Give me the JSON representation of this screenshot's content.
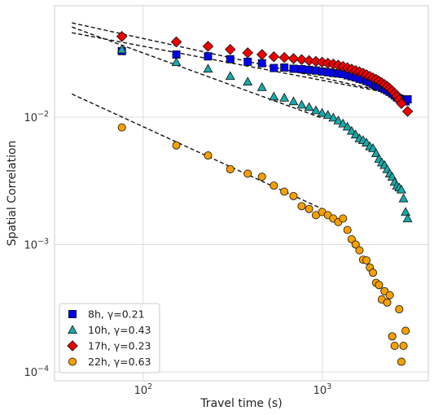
{
  "chart_data": {
    "type": "scatter",
    "xlabel": "Travel time (s)",
    "ylabel": "Spatial Correlation",
    "xscale": "log",
    "yscale": "log",
    "xlim": [
      32,
      3900
    ],
    "ylim": [
      8.5e-05,
      0.075
    ],
    "grid": true,
    "legend_position": "lower-left",
    "xticks": [
      {
        "value": 100,
        "mantissa": "10",
        "exp": "2"
      },
      {
        "value": 1000,
        "mantissa": "10",
        "exp": "3"
      }
    ],
    "yticks": [
      {
        "value": 0.0001,
        "mantissa": "10",
        "exp": "−4"
      },
      {
        "value": 0.001,
        "mantissa": "10",
        "exp": "−3"
      },
      {
        "value": 0.01,
        "mantissa": "10",
        "exp": "−2"
      }
    ],
    "fit_lines": [
      {
        "x": [
          40,
          3000
        ],
        "y": [
          0.055,
          0.0145
        ]
      },
      {
        "x": [
          40,
          1000
        ],
        "y": [
          0.051,
          0.0098
        ]
      },
      {
        "x": [
          40,
          3000
        ],
        "y": [
          0.046,
          0.0145
        ]
      },
      {
        "x": [
          40,
          1000
        ],
        "y": [
          0.0152,
          0.0019
        ]
      }
    ],
    "series": [
      {
        "name": "8h, γ=0.21",
        "marker": "square",
        "color": "#0000ee",
        "points": [
          [
            76,
            0.033
          ],
          [
            153,
            0.031
          ],
          [
            230,
            0.03
          ],
          [
            306,
            0.0285
          ],
          [
            383,
            0.0272
          ],
          [
            460,
            0.0265
          ],
          [
            536,
            0.0243
          ],
          [
            613,
            0.0245
          ],
          [
            690,
            0.024
          ],
          [
            766,
            0.0238
          ],
          [
            843,
            0.0235
          ],
          [
            920,
            0.0232
          ],
          [
            996,
            0.0228
          ],
          [
            1073,
            0.0225
          ],
          [
            1150,
            0.0222
          ],
          [
            1226,
            0.022
          ],
          [
            1303,
            0.0218
          ],
          [
            1380,
            0.0213
          ],
          [
            1456,
            0.0209
          ],
          [
            1533,
            0.0205
          ],
          [
            1610,
            0.02
          ],
          [
            1686,
            0.0197
          ],
          [
            1763,
            0.0192
          ],
          [
            1840,
            0.0187
          ],
          [
            1916,
            0.0182
          ],
          [
            1993,
            0.0178
          ],
          [
            2070,
            0.0174
          ],
          [
            2146,
            0.017
          ],
          [
            2223,
            0.0166
          ],
          [
            2300,
            0.0162
          ],
          [
            2376,
            0.0158
          ],
          [
            2453,
            0.0153
          ],
          [
            2530,
            0.0148
          ],
          [
            2606,
            0.0143
          ],
          [
            2683,
            0.014
          ],
          [
            2760,
            0.0138
          ],
          [
            2836,
            0.0135
          ],
          [
            2913,
            0.0133
          ],
          [
            2990,
            0.0138
          ]
        ]
      },
      {
        "name": "10h, γ=0.43",
        "marker": "triangle",
        "color": "#1aa8a8",
        "points": [
          [
            76,
            0.034
          ],
          [
            153,
            0.027
          ],
          [
            230,
            0.024
          ],
          [
            306,
            0.021
          ],
          [
            383,
            0.019
          ],
          [
            460,
            0.0172
          ],
          [
            536,
            0.0145
          ],
          [
            613,
            0.0142
          ],
          [
            690,
            0.0133
          ],
          [
            766,
            0.0125
          ],
          [
            843,
            0.012
          ],
          [
            920,
            0.0113
          ],
          [
            996,
            0.0108
          ],
          [
            1073,
            0.0104
          ],
          [
            1150,
            0.0099
          ],
          [
            1226,
            0.0094
          ],
          [
            1303,
            0.0089
          ],
          [
            1380,
            0.0084
          ],
          [
            1456,
            0.0078
          ],
          [
            1533,
            0.0073
          ],
          [
            1610,
            0.0068
          ],
          [
            1686,
            0.0066
          ],
          [
            1763,
            0.0063
          ],
          [
            1840,
            0.0059
          ],
          [
            1916,
            0.0057
          ],
          [
            1993,
            0.0052
          ],
          [
            2070,
            0.0047
          ],
          [
            2146,
            0.0044
          ],
          [
            2223,
            0.0042
          ],
          [
            2300,
            0.0039
          ],
          [
            2376,
            0.0036
          ],
          [
            2453,
            0.0034
          ],
          [
            2530,
            0.0031
          ],
          [
            2606,
            0.0029
          ],
          [
            2683,
            0.0028
          ],
          [
            2760,
            0.0027
          ],
          [
            2836,
            0.0023
          ],
          [
            2913,
            0.0018
          ],
          [
            2990,
            0.0016
          ]
        ]
      },
      {
        "name": "17h, γ=0.23",
        "marker": "diamond",
        "color": "#ee0000",
        "points": [
          [
            76,
            0.043
          ],
          [
            153,
            0.039
          ],
          [
            230,
            0.036
          ],
          [
            306,
            0.034
          ],
          [
            383,
            0.032
          ],
          [
            460,
            0.031
          ],
          [
            536,
            0.0298
          ],
          [
            613,
            0.0294
          ],
          [
            690,
            0.0288
          ],
          [
            766,
            0.0283
          ],
          [
            843,
            0.0278
          ],
          [
            920,
            0.0274
          ],
          [
            996,
            0.027
          ],
          [
            1073,
            0.0265
          ],
          [
            1150,
            0.0261
          ],
          [
            1226,
            0.0256
          ],
          [
            1303,
            0.025
          ],
          [
            1380,
            0.0244
          ],
          [
            1456,
            0.0238
          ],
          [
            1533,
            0.0232
          ],
          [
            1610,
            0.0227
          ],
          [
            1686,
            0.0221
          ],
          [
            1763,
            0.0215
          ],
          [
            1840,
            0.0209
          ],
          [
            1916,
            0.0203
          ],
          [
            1993,
            0.0198
          ],
          [
            2070,
            0.0192
          ],
          [
            2146,
            0.0186
          ],
          [
            2223,
            0.018
          ],
          [
            2300,
            0.0174
          ],
          [
            2376,
            0.0168
          ],
          [
            2453,
            0.0161
          ],
          [
            2530,
            0.0154
          ],
          [
            2606,
            0.0146
          ],
          [
            2683,
            0.0137
          ],
          [
            2760,
            0.0128
          ],
          [
            2990,
            0.0111
          ]
        ]
      },
      {
        "name": "22h, γ=0.63",
        "marker": "circle",
        "color": "#f5a000",
        "points": [
          [
            76,
            0.0083
          ],
          [
            153,
            0.006
          ],
          [
            230,
            0.005
          ],
          [
            306,
            0.0039
          ],
          [
            383,
            0.0036
          ],
          [
            460,
            0.0034
          ],
          [
            536,
            0.0029
          ],
          [
            613,
            0.0026
          ],
          [
            690,
            0.0024
          ],
          [
            766,
            0.002
          ],
          [
            843,
            0.0019
          ],
          [
            920,
            0.0017
          ],
          [
            996,
            0.0018
          ],
          [
            1073,
            0.0017
          ],
          [
            1150,
            0.0016
          ],
          [
            1226,
            0.0015
          ],
          [
            1303,
            0.0016
          ],
          [
            1380,
            0.0013
          ],
          [
            1456,
            0.0011
          ],
          [
            1533,
            0.001
          ],
          [
            1610,
            0.0009
          ],
          [
            1686,
            0.00076
          ],
          [
            1763,
            0.00075
          ],
          [
            1840,
            0.00066
          ],
          [
            1916,
            0.0006
          ],
          [
            1993,
            0.0005
          ],
          [
            2070,
            0.00048
          ],
          [
            2146,
            0.00037
          ],
          [
            2223,
            0.00043
          ],
          [
            2300,
            0.00035
          ],
          [
            2376,
            0.0004
          ],
          [
            2453,
            0.00019
          ],
          [
            2530,
            0.00016
          ],
          [
            2683,
            0.00031
          ],
          [
            2760,
            0.00012
          ],
          [
            2836,
            0.00016
          ],
          [
            2913,
            0.00021
          ]
        ]
      }
    ]
  }
}
